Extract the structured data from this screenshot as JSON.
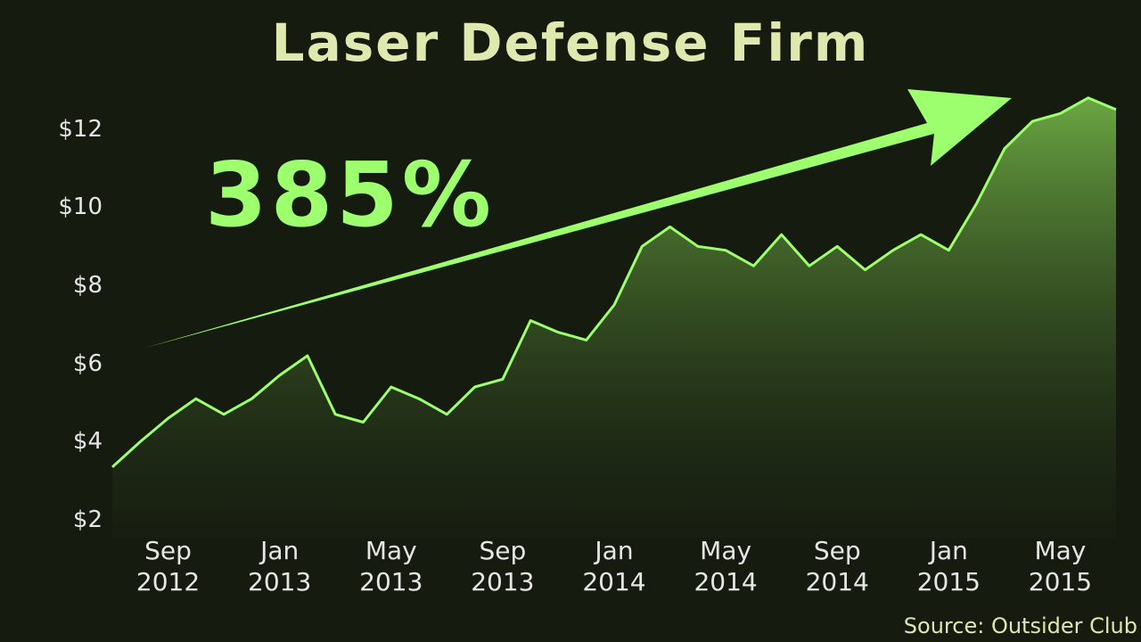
{
  "chart_data": {
    "type": "area",
    "title": "Laser Defense Firm",
    "annotation": "385%",
    "source": "Source: Outsider Club",
    "color": "#9dff6e",
    "x": [
      "2012-07",
      "2012-08",
      "2012-09",
      "2012-10",
      "2012-11",
      "2012-12",
      "2013-01",
      "2013-02",
      "2013-03",
      "2013-04",
      "2013-05",
      "2013-06",
      "2013-07",
      "2013-08",
      "2013-09",
      "2013-10",
      "2013-11",
      "2013-12",
      "2014-01",
      "2014-02",
      "2014-03",
      "2014-04",
      "2014-05",
      "2014-06",
      "2014-07",
      "2014-08",
      "2014-09",
      "2014-10",
      "2014-11",
      "2014-12",
      "2015-01",
      "2015-02",
      "2015-03",
      "2015-04",
      "2015-05",
      "2015-06",
      "2015-07"
    ],
    "values": [
      3.35,
      4.0,
      4.6,
      5.1,
      4.7,
      5.1,
      5.7,
      6.2,
      4.7,
      4.5,
      5.4,
      5.1,
      4.7,
      5.4,
      5.6,
      7.1,
      6.8,
      6.6,
      7.5,
      9.0,
      9.5,
      9.0,
      8.9,
      8.5,
      9.3,
      8.5,
      9.0,
      8.4,
      8.9,
      9.3,
      8.9,
      10.1,
      11.5,
      12.2,
      12.4,
      12.8,
      12.5
    ],
    "xlim": [
      "2012-07",
      "2015-07"
    ],
    "xticks": [
      {
        "value": "2012-09",
        "label": "Sep 2012"
      },
      {
        "value": "2013-01",
        "label": "Jan 2013"
      },
      {
        "value": "2013-05",
        "label": "May 2013"
      },
      {
        "value": "2013-09",
        "label": "Sep 2013"
      },
      {
        "value": "2014-01",
        "label": "Jan 2014"
      },
      {
        "value": "2014-05",
        "label": "May 2014"
      },
      {
        "value": "2014-09",
        "label": "Sep 2014"
      },
      {
        "value": "2015-01",
        "label": "Jan 2015"
      },
      {
        "value": "2015-05",
        "label": "May 2015"
      }
    ],
    "ylim": [
      2,
      13
    ],
    "yticks": [
      {
        "value": 2,
        "label": "$2"
      },
      {
        "value": 4,
        "label": "$4"
      },
      {
        "value": 6,
        "label": "$6"
      },
      {
        "value": 8,
        "label": "$8"
      },
      {
        "value": 10,
        "label": "$10"
      },
      {
        "value": 12,
        "label": "$12"
      }
    ]
  }
}
